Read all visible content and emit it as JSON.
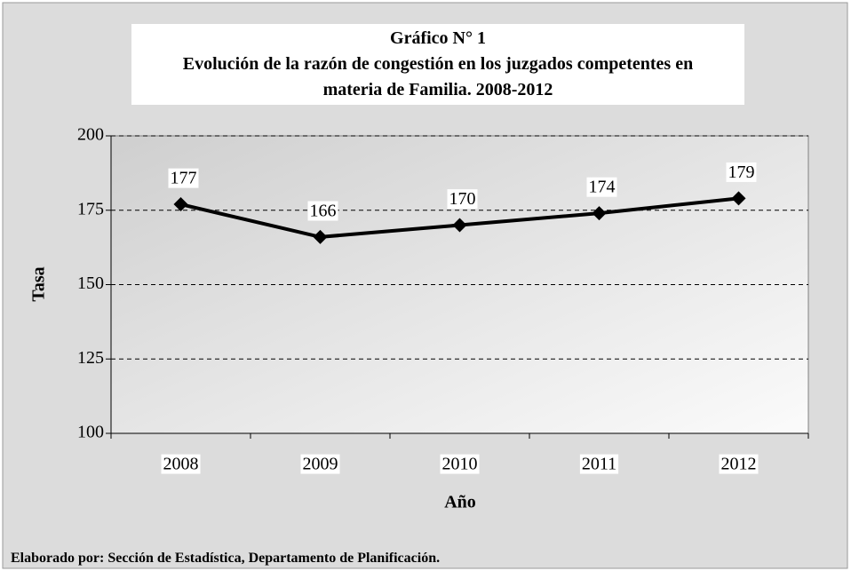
{
  "chart_data": {
    "type": "line",
    "title": "Gráfico N° 1",
    "subtitle": "Evolución de la razón de congestión en los juzgados competentes en materia de Familia. 2008-2012",
    "x_label": "Año",
    "y_label": "Tasa",
    "categories": [
      "2008",
      "2009",
      "2010",
      "2011",
      "2012"
    ],
    "series": [
      {
        "name": "Tasa",
        "color": "#000000",
        "values": [
          177,
          166,
          170,
          174,
          179
        ]
      }
    ],
    "ylim": [
      100,
      200
    ],
    "yticks": [
      100,
      125,
      150,
      175,
      200
    ],
    "grid": true,
    "note": "Elaborado por: Sección de Estadística, Departamento de Planificación."
  }
}
